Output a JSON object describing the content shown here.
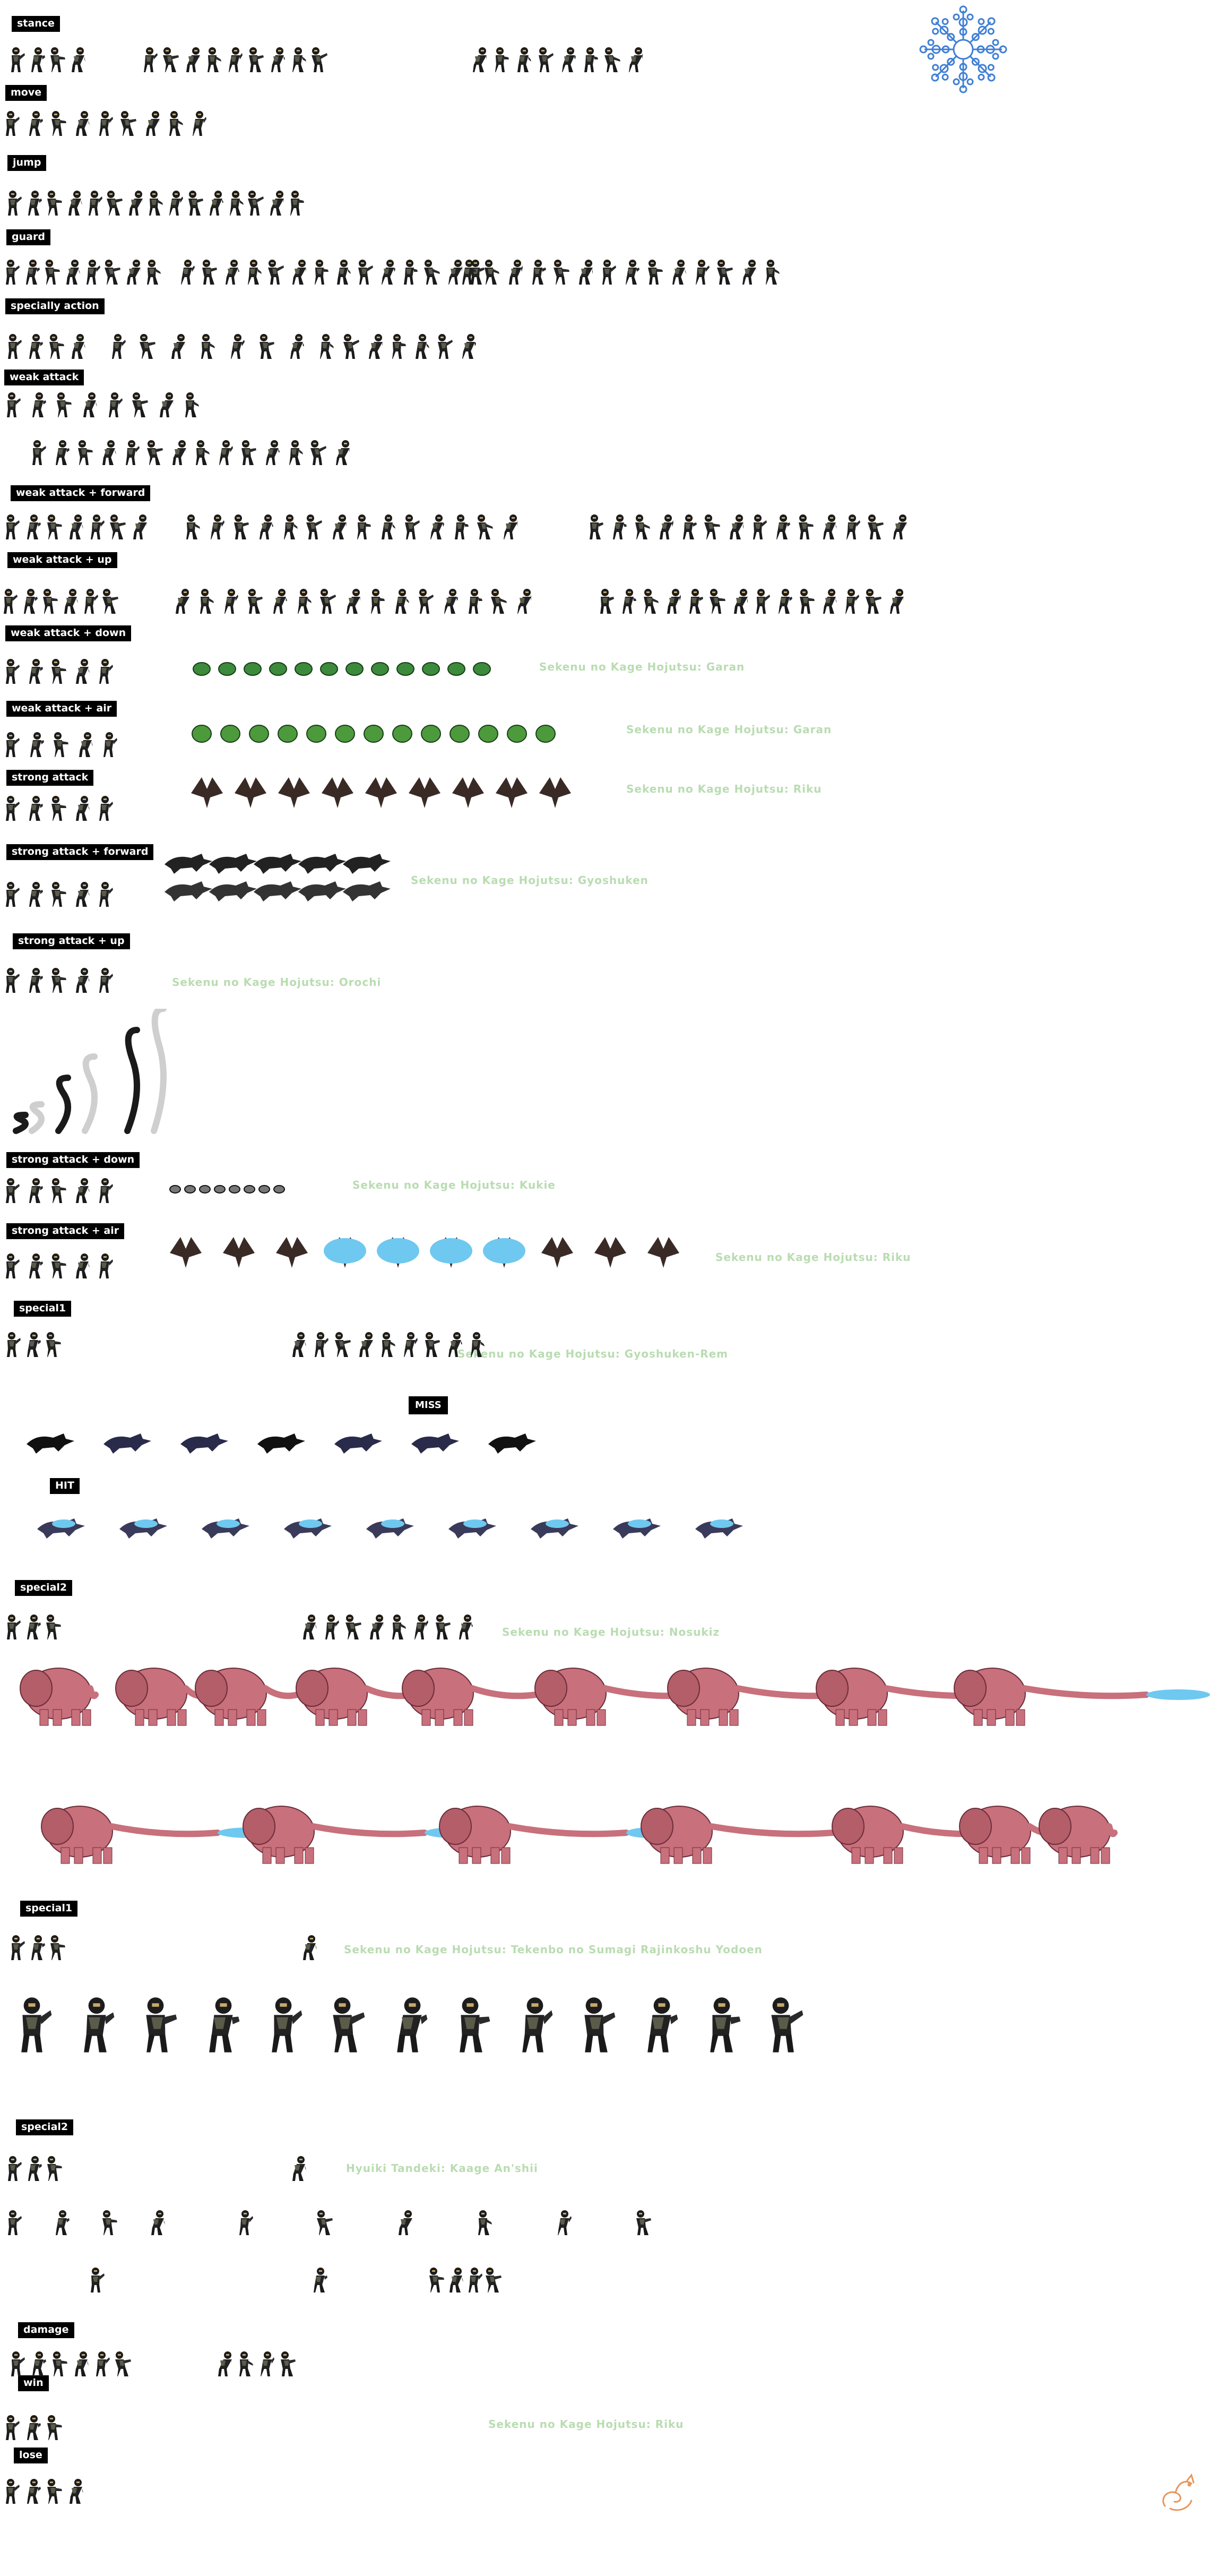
{
  "sections": [
    {
      "label": "stance"
    },
    {
      "label": "move"
    },
    {
      "label": "jump"
    },
    {
      "label": "guard"
    },
    {
      "label": "specially action"
    },
    {
      "label": "weak attack"
    },
    {
      "label": "weak attack + forward"
    },
    {
      "label": "weak attack + up"
    },
    {
      "label": "weak attack + down"
    },
    {
      "label": "weak attack + air"
    },
    {
      "label": "strong attack"
    },
    {
      "label": "strong attack + forward"
    },
    {
      "label": "strong attack + up"
    },
    {
      "label": "strong attack + down"
    },
    {
      "label": "strong attack + air"
    },
    {
      "label": "special1"
    },
    {
      "label": "MISS"
    },
    {
      "label": "HIT"
    },
    {
      "label": "special2"
    },
    {
      "label": "special1"
    },
    {
      "label": "special2"
    },
    {
      "label": "damage"
    },
    {
      "label": "win"
    },
    {
      "label": "lose"
    }
  ],
  "summon_notes": [
    "Sekenu no Kage Hojutsu: Garan",
    "Sekenu no Kage Hojutsu: Garan",
    "Sekenu no Kage Hojutsu: Riku",
    "Sekenu no Kage Hojutsu: Gyoshuken",
    "Sekenu no Kage Hojutsu: Orochi",
    "Sekenu no Kage Hojutsu: Kukie",
    "Sekenu no Kage Hojutsu: Riku",
    "Sekenu no Kage Hojutsu: Gyoshuken-Rem",
    "Sekenu no Kage Hojutsu: Nosukiz",
    "Sekenu no Kage Hojutsu: Tekenbo no Sumagi Rajinkoshu Yodoen",
    "Hyuiki Tandeki: Kaage An'shii",
    "Sekenu no Kage Hojutsu: Riku"
  ],
  "icons": {
    "snowflake": "snowflake-emblem-icon",
    "logo": "orange-dragon-logo-icon"
  },
  "colors": {
    "label_bg": "#000000",
    "label_text": "#ffffff",
    "summon_text": "#b9dcb1",
    "emblem": "#3f7fd6",
    "elephant": "#c8707c",
    "chakra_blue": "#6fc8ef",
    "bird_dark": "#3a2a26"
  }
}
